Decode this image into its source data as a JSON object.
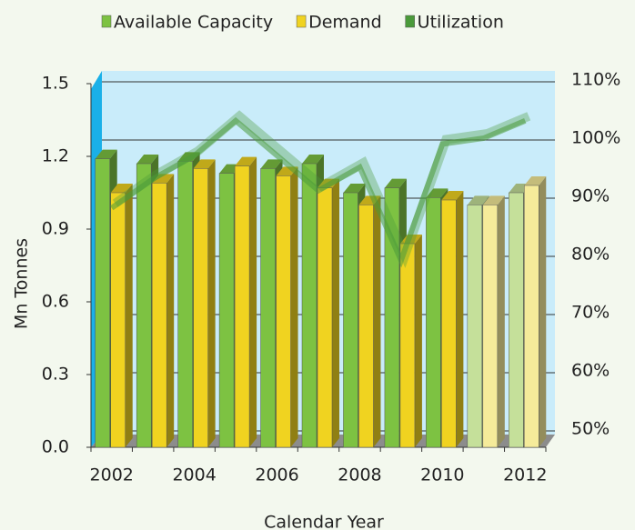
{
  "chart_data": {
    "type": "bar",
    "x_label": "Calendar Year",
    "y_label": "Mn Tonnes",
    "categories": [
      "2002",
      null,
      "2004",
      null,
      "2006",
      null,
      "2008",
      null,
      "2010",
      null,
      "2012"
    ],
    "series": [
      {
        "name": "Available Capacity",
        "color": "#7dc242",
        "colors": [
          "#7dc242",
          "#7dc242",
          "#7dc242",
          "#7dc242",
          "#7dc242",
          "#7dc242",
          "#7dc242",
          "#7dc242",
          "#7dc242",
          "#c5e09a",
          "#c5e09a"
        ],
        "values": [
          1.19,
          1.17,
          1.18,
          1.13,
          1.15,
          1.17,
          1.05,
          1.07,
          1.03,
          1.0,
          1.05
        ]
      },
      {
        "name": "Demand",
        "color": "#f0d320",
        "colors": [
          "#f0d320",
          "#f0d320",
          "#f0d320",
          "#f0d320",
          "#f0d320",
          "#f0d320",
          "#f0d320",
          "#f0d320",
          "#f0d320",
          "#f5eb9a",
          "#f5eb9a"
        ],
        "values": [
          1.05,
          1.09,
          1.15,
          1.16,
          1.12,
          1.07,
          1.0,
          0.84,
          1.02,
          1.0,
          1.08
        ]
      },
      {
        "name": "Utilization",
        "type": "line",
        "axis": "y2",
        "color": "#4a9a3a",
        "values": [
          88,
          93,
          97,
          103,
          97,
          91,
          95,
          79,
          99,
          100,
          103
        ]
      }
    ],
    "ylim": [
      0,
      1.5
    ],
    "yticks": [
      {
        "value": 0,
        "label": "0.0"
      },
      0.3,
      0.6,
      0.9,
      1.2,
      1.5
    ],
    "y2lim": [
      50,
      110
    ],
    "y2ticks": [
      {
        "value": 50,
        "label": "50%"
      },
      {
        "value": 60,
        "label": "60%"
      },
      {
        "value": 70,
        "label": "70%"
      },
      {
        "value": 80,
        "label": "80%"
      },
      {
        "value": 90,
        "label": "90%"
      },
      {
        "value": 100,
        "label": "100%"
      },
      {
        "value": 110,
        "label": "110%"
      }
    ],
    "grid": true,
    "legend": "top"
  }
}
